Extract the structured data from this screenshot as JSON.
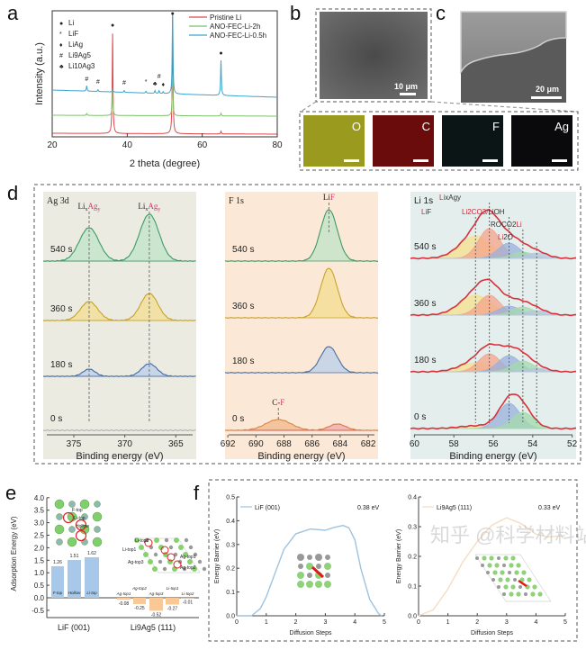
{
  "panel_labels": {
    "a": "a",
    "b": "b",
    "c": "c",
    "d": "d",
    "e": "e",
    "f": "f"
  },
  "images": {
    "sem_b_scale": "10 μm",
    "sem_c_scale": "20 μm",
    "eds_maps": [
      {
        "element": "O",
        "color": "#9a9a1e"
      },
      {
        "element": "C",
        "color": "#6a0c0c"
      },
      {
        "element": "F",
        "color": "#0b1516"
      },
      {
        "element": "Ag",
        "color": "#0a0a0c"
      }
    ]
  },
  "watermark": "知乎 @科学材料站",
  "chart_data": [
    {
      "type": "line",
      "panel": "a",
      "xlabel": "2 theta (degree)",
      "ylabel": "Intensity (a.u.)",
      "xlim": [
        20,
        80
      ],
      "xticks": [
        "20",
        "40",
        "60",
        "80"
      ],
      "legend_placement": "top-right",
      "phase_legend": [
        {
          "symbol": "●",
          "label": "Li"
        },
        {
          "symbol": "*",
          "label": "LiF"
        },
        {
          "symbol": "♦",
          "label": "LiAg"
        },
        {
          "symbol": "#",
          "label": "Li9Ag5"
        },
        {
          "symbol": "♣",
          "label": "Li10Ag3"
        }
      ],
      "peak_markers": [
        {
          "x": 36.1,
          "symbol": "●",
          "y": 118
        },
        {
          "x": 52.1,
          "symbol": "●",
          "y": 131
        },
        {
          "x": 65.0,
          "symbol": "●",
          "y": 87
        },
        {
          "x": 29.2,
          "symbol": "#",
          "y": 58
        },
        {
          "x": 32.2,
          "symbol": "#",
          "y": 55
        },
        {
          "x": 39.2,
          "symbol": "#",
          "y": 54
        },
        {
          "x": 45.0,
          "symbol": "*",
          "y": 55
        },
        {
          "x": 47.4,
          "symbol": "♣",
          "y": 53
        },
        {
          "x": 48.5,
          "symbol": "#",
          "y": 55
        },
        {
          "x": 49.6,
          "symbol": "♦",
          "y": 52
        }
      ],
      "series": [
        {
          "name": "Pristine Li",
          "color": "#e0474c",
          "baseline": [
            0,
            -1
          ],
          "peaks": [
            {
              "x": 36.1,
              "h": 111
            },
            {
              "x": 52.1,
              "h": 131
            },
            {
              "x": 65.0,
              "h": 3
            }
          ]
        },
        {
          "name": "ANO-FEC-Li-2h",
          "color": "#7cc46a",
          "baseline": [
            20,
            19
          ],
          "peaks": [
            {
              "x": 29.2,
              "h": 2
            },
            {
              "x": 36.1,
              "h": 30
            },
            {
              "x": 52.1,
              "h": 45
            },
            {
              "x": 65.0,
              "h": 3
            }
          ]
        },
        {
          "name": "ANO-FEC-Li-0.5h",
          "color": "#3aa6cf",
          "baseline": [
            48,
            40
          ],
          "peaks": [
            {
              "x": 29.2,
              "h": 6
            },
            {
              "x": 32.2,
              "h": 2
            },
            {
              "x": 36.1,
              "h": 3
            },
            {
              "x": 39.2,
              "h": 2
            },
            {
              "x": 45.0,
              "h": 2
            },
            {
              "x": 47.4,
              "h": 3
            },
            {
              "x": 48.5,
              "h": 3
            },
            {
              "x": 49.6,
              "h": 2
            },
            {
              "x": 52.1,
              "h": 88
            },
            {
              "x": 65.0,
              "h": 39
            }
          ]
        }
      ]
    },
    {
      "type": "area",
      "panel": "d",
      "title": "Ag 3d",
      "xlabel": "Binding energy (eV)",
      "xlim": [
        378,
        363
      ],
      "xticks": [
        "375",
        "370",
        "365"
      ],
      "bg": "#ebebe2",
      "annotations": [
        {
          "x": 373.5,
          "text_a": "Li",
          "text_b": "x",
          "text_c": "Ag",
          "text_d": "y"
        },
        {
          "x": 367.6,
          "text_a": "Li",
          "text_b": "x",
          "text_c": "Ag",
          "text_d": "y"
        }
      ],
      "spectra": [
        {
          "label": "540 s",
          "color": "#bfe4c8",
          "line": "#3f9a68",
          "components": [
            {
              "x": 373.5,
              "h": 37,
              "w": 0.95
            },
            {
              "x": 367.6,
              "h": 52,
              "w": 0.95
            }
          ]
        },
        {
          "label": "360 s",
          "color": "#f4dd8f",
          "line": "#c9a32d",
          "components": [
            {
              "x": 373.5,
              "h": 21,
              "w": 0.85
            },
            {
              "x": 367.6,
              "h": 30,
              "w": 0.85
            }
          ]
        },
        {
          "label": "180 s",
          "color": "#b9cfe9",
          "line": "#4a6fa5",
          "components": [
            {
              "x": 373.5,
              "h": 8,
              "w": 0.6
            },
            {
              "x": 367.6,
              "h": 14,
              "w": 0.75
            }
          ]
        },
        {
          "label": "0 s",
          "color": "#dddddd",
          "line": "#aaaaaa",
          "components": []
        }
      ]
    },
    {
      "type": "area",
      "panel": "d",
      "title": "F 1s",
      "xlabel": "Binding energy (eV)",
      "xlim": [
        692.2,
        681.3
      ],
      "xticks": [
        "692",
        "690",
        "688",
        "686",
        "684",
        "682"
      ],
      "bg": "#fbe8d6",
      "annotations": [
        {
          "x": 684.8,
          "text_a": "Li",
          "text_c": "F"
        },
        {
          "x": 688.4,
          "text_a": "C-",
          "text_c": "F"
        }
      ],
      "spectra": [
        {
          "label": "540 s",
          "color": "#bfe4c8",
          "line": "#3f9a68",
          "components": [
            {
              "x": 684.8,
              "h": 57,
              "w": 0.6
            }
          ]
        },
        {
          "label": "360 s",
          "color": "#f4dd8f",
          "line": "#c9a32d",
          "components": [
            {
              "x": 684.8,
              "h": 55,
              "w": 0.6
            }
          ]
        },
        {
          "label": "180 s",
          "color": "#b9cfe9",
          "line": "#4a6fa5",
          "components": [
            {
              "x": 684.8,
              "h": 29,
              "w": 0.6
            }
          ]
        },
        {
          "label": "0 s",
          "color": "#f2b889",
          "line": "#d98a4c",
          "components": [
            {
              "x": 688.4,
              "h": 12,
              "w": 0.9
            },
            {
              "x": 684.2,
              "h": 7,
              "w": 0.6,
              "color": "#f0a9a9",
              "line": "#d9444a"
            }
          ]
        }
      ]
    },
    {
      "type": "area",
      "panel": "d",
      "title": "Li 1s",
      "xlabel": "Binding energy (eV)",
      "xlim": [
        60,
        52
      ],
      "xticks": [
        "60",
        "58",
        "56",
        "54",
        "52"
      ],
      "bg": "#e4eeec",
      "envelope_color": "#d9303a",
      "components": [
        {
          "name_a": "Li",
          "name_b": "F",
          "x": 56.9,
          "color": "#f6e08c"
        },
        {
          "name_a": "Li",
          "name_b": "xAgy",
          "x": 56.2,
          "color": "#f4a48c"
        },
        {
          "name_a": "Li2CO3/",
          "name_b": "LiOH",
          "x": 55.2,
          "color": "#9ab0dc"
        },
        {
          "name_a": "ROCO2",
          "name_b": "Li",
          "x": 54.5,
          "color": "#a3dbac"
        },
        {
          "name_a": "Li",
          "name_b": "2O",
          "x": 53.8,
          "color": "#b8c6e0"
        }
      ],
      "spectra": [
        {
          "label": "540 s",
          "heights": [
            25,
            33,
            17,
            7,
            6
          ]
        },
        {
          "label": "360 s",
          "heights": [
            22,
            22,
            10,
            9,
            5
          ]
        },
        {
          "label": "180 s",
          "heights": [
            10,
            20,
            18,
            12,
            4
          ]
        },
        {
          "label": "0 s",
          "heights": [
            3,
            0,
            28,
            18,
            0
          ]
        }
      ]
    },
    {
      "type": "bar",
      "panel": "e",
      "ylabel": "Adsorption Energy (eV)",
      "ylim": [
        -0.8,
        4.0
      ],
      "yticks": [
        "-0.5",
        "0.0",
        "0.5",
        "1.0",
        "1.5",
        "2.0",
        "2.5",
        "3.0",
        "3.5",
        "4.0"
      ],
      "groups": [
        {
          "name": "LiF (001)",
          "color": "#a8c8ea",
          "bars": [
            {
              "label": "F-top",
              "value": 1.26,
              "value_label": "1.26"
            },
            {
              "label": "Hollow",
              "value": 1.51,
              "value_label": "1.51"
            },
            {
              "label": "Li-top",
              "value": 1.62,
              "value_label": "1.62"
            }
          ]
        },
        {
          "name": "Li9Ag5 (111)",
          "color": "#f9c895",
          "bars": [
            {
              "label": "Ag-top1",
              "value": -0.08,
              "value_label": "-0.08"
            },
            {
              "label": "Ag-top2",
              "value": -0.25,
              "value_label": "-0.25"
            },
            {
              "label": "Ag-top3",
              "value": -0.52,
              "value_label": "-0.52"
            },
            {
              "label": "Li-top1",
              "value": -0.27,
              "value_label": "-0.27"
            },
            {
              "label": "Li-top2",
              "value": -0.01,
              "value_label": "-0.01"
            }
          ]
        }
      ],
      "inset_labels_lif": [
        "F-top",
        "Li-top",
        "Hollow"
      ],
      "inset_labels_liag": [
        "Li-top2",
        "Li-top1",
        "Ag-top3",
        "Ag-top1",
        "Ag-top2"
      ]
    },
    {
      "type": "line",
      "panel": "f",
      "xlabel": "Diffusion Steps",
      "ylabel": "Energy Barrier (eV)",
      "xlim": [
        0,
        5
      ],
      "ylim": [
        0,
        0.5
      ],
      "xticks": [
        "0",
        "1",
        "2",
        "3",
        "4",
        "5"
      ],
      "yticks": [
        "0.0",
        "0.1",
        "0.2",
        "0.3",
        "0.4",
        "0.5"
      ],
      "series": [
        {
          "name": "LiF (001)",
          "color": "#9fc3df",
          "points": [
            [
              0,
              0
            ],
            [
              0.5,
              0
            ],
            [
              0.8,
              0.03
            ],
            [
              1,
              0.08
            ],
            [
              1.3,
              0.18
            ],
            [
              1.6,
              0.28
            ],
            [
              2,
              0.345
            ],
            [
              2.5,
              0.365
            ],
            [
              3,
              0.36
            ],
            [
              3.3,
              0.372
            ],
            [
              3.6,
              0.38
            ],
            [
              3.8,
              0.37
            ],
            [
              4,
              0.32
            ],
            [
              4.2,
              0.2
            ],
            [
              4.5,
              0.07
            ],
            [
              4.8,
              0.01
            ],
            [
              4.9,
              0
            ]
          ]
        }
      ],
      "barrier_label": "0.38 eV"
    },
    {
      "type": "line",
      "panel": "f",
      "xlabel": "Diffusion Steps",
      "ylabel": "Energy Barrier (eV)",
      "xlim": [
        0,
        5
      ],
      "ylim": [
        0,
        0.4
      ],
      "xticks": [
        "0",
        "1",
        "2",
        "3",
        "4",
        "5"
      ],
      "yticks": [
        "0.0",
        "0.1",
        "0.2",
        "0.3",
        "0.4"
      ],
      "series": [
        {
          "name": "Li9Ag5 (111)",
          "color": "#f6dcc0",
          "points": [
            [
              0,
              0
            ],
            [
              0.5,
              0.02
            ],
            [
              1,
              0.09
            ],
            [
              1.5,
              0.18
            ],
            [
              2,
              0.25
            ],
            [
              2.5,
              0.305
            ],
            [
              3,
              0.33
            ],
            [
              3.5,
              0.31
            ],
            [
              4,
              0.275
            ],
            [
              4.4,
              0.265
            ],
            [
              5,
              0.27
            ]
          ]
        }
      ],
      "barrier_label": "0.33 eV"
    }
  ]
}
